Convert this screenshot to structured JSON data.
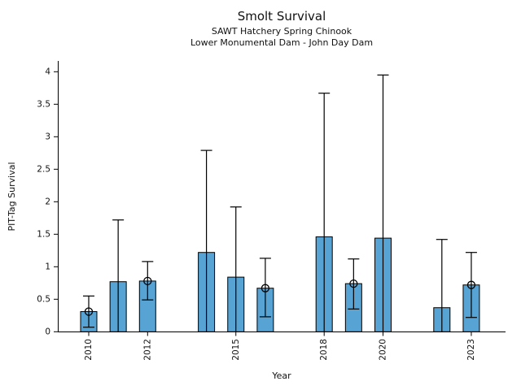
{
  "chart_data": {
    "type": "bar",
    "title": "Smolt Survival",
    "subtitle1": "SAWT Hatchery Spring Chinook",
    "subtitle2": "Lower Monumental Dam - John Day Dam",
    "xlabel": "Year",
    "ylabel": "PIT-Tag Survival",
    "xlim": [
      2009,
      2024.2
    ],
    "ylim": [
      0,
      4.15
    ],
    "grid": false,
    "legend": "none",
    "bar_color": "#57a3d4",
    "bar_edge_color": "#000000",
    "errorbar_color": "#000000",
    "ytick_values": [
      0,
      0.5,
      1,
      1.5,
      2,
      2.5,
      3,
      3.5,
      4
    ],
    "ytick_labels": [
      "0",
      "0.5",
      "1",
      "1.5",
      "2",
      "2.5",
      "3",
      "3.5",
      "4"
    ],
    "xtick_years": [
      "2010",
      "2012",
      "2015",
      "2018",
      "2020",
      "2023"
    ],
    "bars": [
      {
        "year": 2010,
        "value": 0.31,
        "err_low": 0.07,
        "err_high": 0.55,
        "marker": true,
        "cap_low": true
      },
      {
        "year": 2011,
        "value": 0.77,
        "err_low": 0.0,
        "err_high": 1.72,
        "marker": false,
        "cap_low": false
      },
      {
        "year": 2012,
        "value": 0.78,
        "err_low": 0.49,
        "err_high": 1.08,
        "marker": true,
        "cap_low": true
      },
      {
        "year": 2014,
        "value": 1.22,
        "err_low": 0.0,
        "err_high": 2.79,
        "marker": false,
        "cap_low": false
      },
      {
        "year": 2015,
        "value": 0.84,
        "err_low": 0.0,
        "err_high": 1.92,
        "marker": false,
        "cap_low": false
      },
      {
        "year": 2016,
        "value": 0.67,
        "err_low": 0.23,
        "err_high": 1.13,
        "marker": true,
        "cap_low": true
      },
      {
        "year": 2018,
        "value": 1.46,
        "err_low": 0.0,
        "err_high": 3.67,
        "marker": false,
        "cap_low": false
      },
      {
        "year": 2019,
        "value": 0.74,
        "err_low": 0.35,
        "err_high": 1.12,
        "marker": true,
        "cap_low": true
      },
      {
        "year": 2020,
        "value": 1.44,
        "err_low": 0.0,
        "err_high": 3.95,
        "marker": false,
        "cap_low": false
      },
      {
        "year": 2022,
        "value": 0.37,
        "err_low": 0.0,
        "err_high": 1.42,
        "marker": false,
        "cap_low": false
      },
      {
        "year": 2023,
        "value": 0.72,
        "err_low": 0.22,
        "err_high": 1.22,
        "marker": true,
        "cap_low": true
      }
    ]
  }
}
